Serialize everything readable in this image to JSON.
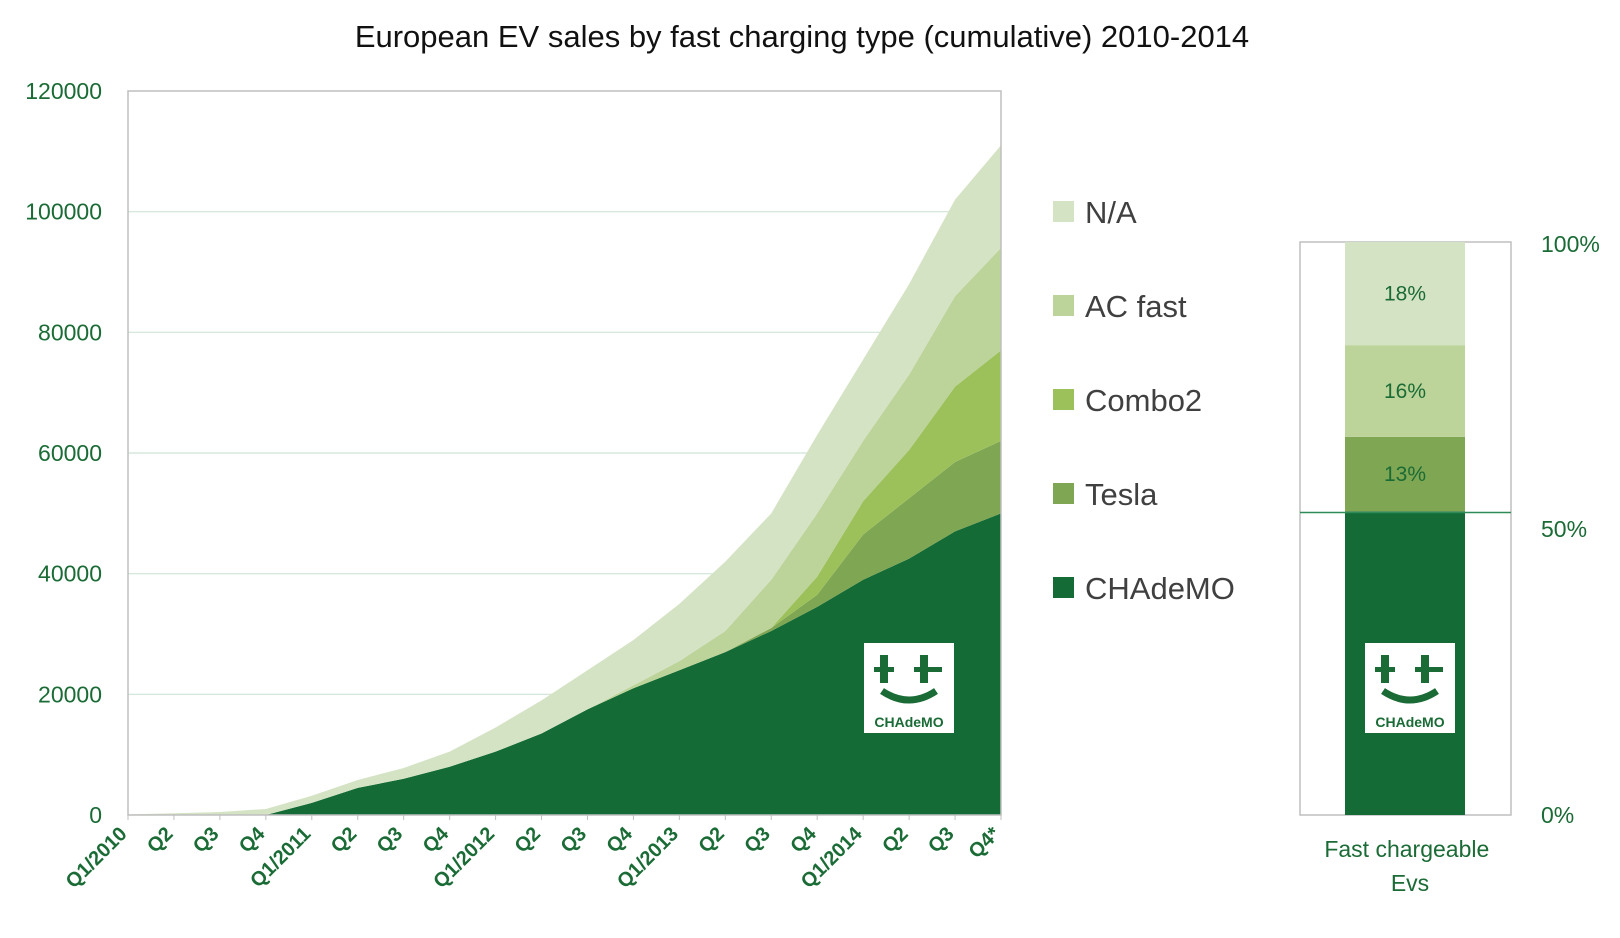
{
  "chart_data": [
    {
      "type": "area",
      "title": "European EV sales by fast charging type (cumulative) 2010-2014",
      "stacked": true,
      "x": [
        "Q1/2010",
        "Q2",
        "Q3",
        "Q4",
        "Q1/2011",
        "Q2",
        "Q3",
        "Q4",
        "Q1/2012",
        "Q2",
        "Q3",
        "Q4",
        "Q1/2013",
        "Q2",
        "Q3",
        "Q4",
        "Q1/2014",
        "Q2",
        "Q3",
        "Q4*"
      ],
      "ylim": [
        0,
        120000
      ],
      "yticks": [
        "0",
        "20000",
        "40000",
        "60000",
        "80000",
        "100000",
        "120000"
      ],
      "grid": true,
      "legend_position": "right",
      "series": [
        {
          "name": "CHAdeMO",
          "color": "#146b35",
          "values": [
            0,
            0,
            0,
            0,
            2000,
            4500,
            6000,
            8000,
            10500,
            13500,
            17500,
            21000,
            24000,
            27000,
            30500,
            34500,
            39000,
            42500,
            47000,
            50000
          ]
        },
        {
          "name": "Tesla",
          "color": "#7fa653",
          "values": [
            0,
            0,
            0,
            0,
            0,
            0,
            0,
            0,
            0,
            0,
            0,
            0,
            0,
            0,
            500,
            2000,
            7500,
            10000,
            11500,
            12000
          ]
        },
        {
          "name": "Combo2",
          "color": "#9cc15a",
          "values": [
            0,
            0,
            0,
            0,
            0,
            0,
            0,
            0,
            0,
            0,
            0,
            0,
            0,
            0,
            0,
            3000,
            5500,
            8000,
            12500,
            15000
          ]
        },
        {
          "name": "AC fast",
          "color": "#bcd39a",
          "values": [
            0,
            0,
            0,
            0,
            0,
            0,
            0,
            0,
            0,
            0,
            0,
            500,
            1500,
            3500,
            8000,
            10500,
            10000,
            12500,
            15000,
            17000
          ]
        },
        {
          "name": "N/A",
          "color": "#d5e3c5",
          "values": [
            100,
            300,
            500,
            1000,
            1200,
            1300,
            1800,
            2500,
            4000,
            5500,
            6500,
            7500,
            9500,
            11500,
            11000,
            13000,
            13500,
            15000,
            16000,
            17000
          ]
        }
      ]
    },
    {
      "type": "bar",
      "stacked": true,
      "categories": [
        "Fast chargeable Evs"
      ],
      "ylim": [
        0,
        100
      ],
      "yticks": [
        "0%",
        "50%",
        "100%"
      ],
      "series": [
        {
          "name": "CHAdeMO",
          "color": "#146b35",
          "values": [
            53
          ]
        },
        {
          "name": "Tesla",
          "color": "#7fa653",
          "label": "13%",
          "values": [
            13
          ]
        },
        {
          "name": "AC fast",
          "color": "#bcd39a",
          "label": "16%",
          "values": [
            16
          ]
        },
        {
          "name": "N/A",
          "color": "#d5e3c5",
          "label": "18%",
          "values": [
            18
          ]
        }
      ]
    }
  ],
  "logo": {
    "text": "CHAdeMO",
    "icon": "chademo-logo-icon"
  }
}
